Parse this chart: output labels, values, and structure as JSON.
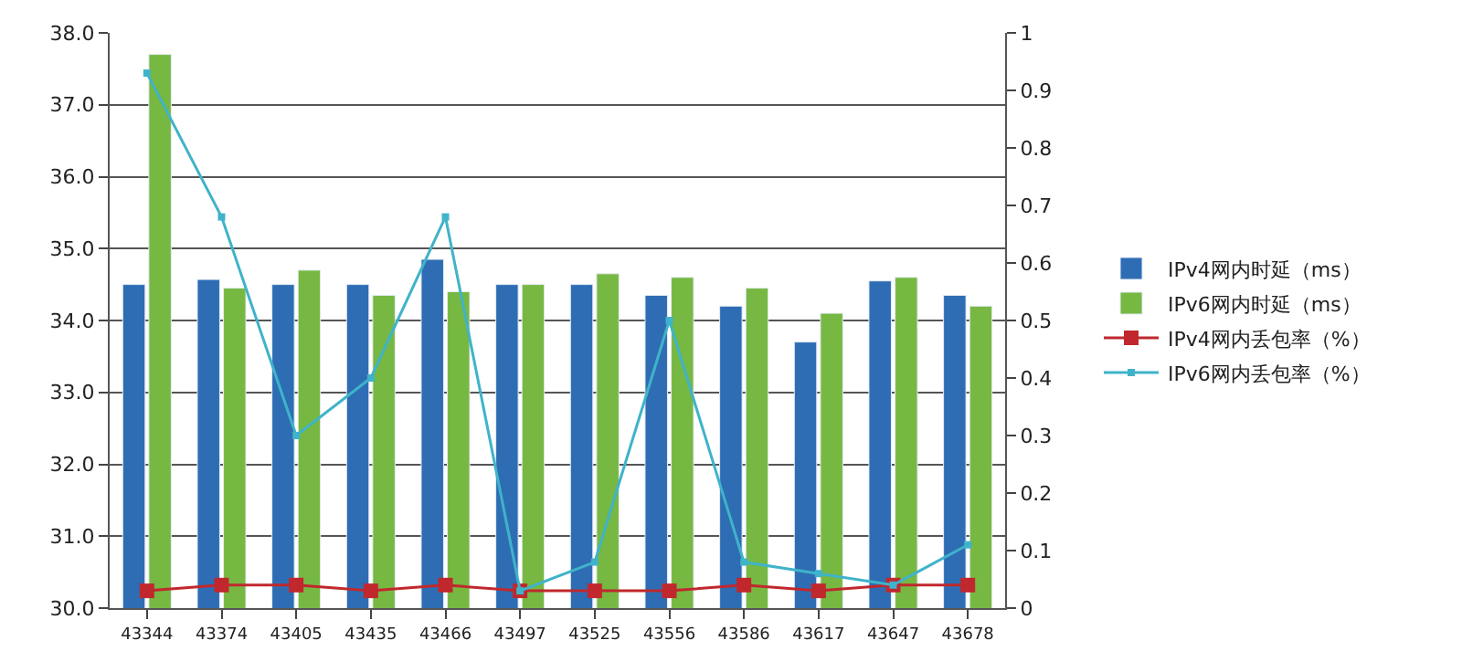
{
  "chart_data": {
    "type": "bar",
    "categories": [
      "43344",
      "43374",
      "43405",
      "43435",
      "43466",
      "43497",
      "43525",
      "43556",
      "43586",
      "43617",
      "43647",
      "43678"
    ],
    "series": [
      {
        "name": "IPv4网内时延（ms）",
        "color": "#2e6db4",
        "values": [
          34.5,
          34.57,
          34.5,
          34.5,
          34.85,
          34.5,
          34.5,
          34.35,
          34.2,
          33.7,
          34.55,
          34.35
        ]
      },
      {
        "name": "IPv6网内时延（ms）",
        "color": "#77b843",
        "values": [
          37.7,
          34.45,
          34.7,
          34.35,
          34.4,
          34.5,
          34.65,
          34.6,
          34.45,
          34.1,
          34.6,
          34.2
        ]
      },
      {
        "name": "IPv4网内丢包率（%）",
        "type": "line",
        "axis": "y2",
        "color": "#c0282d",
        "values": [
          0.03,
          0.04,
          0.04,
          0.03,
          0.04,
          0.03,
          0.03,
          0.03,
          0.04,
          0.03,
          0.04,
          0.04
        ]
      },
      {
        "name": "IPv6网内丢包率（%）",
        "type": "line",
        "axis": "y2",
        "color": "#3fb3c9",
        "values": [
          0.93,
          0.68,
          0.3,
          0.4,
          0.68,
          0.03,
          0.08,
          0.5,
          0.08,
          0.06,
          0.04,
          0.11
        ]
      }
    ],
    "ylim": [
      30,
      38
    ],
    "yticks": [
      {
        "value": 30,
        "label": "30.0"
      },
      {
        "value": 31,
        "label": "31.0"
      },
      {
        "value": 32,
        "label": "32.0"
      },
      {
        "value": 33,
        "label": "33.0"
      },
      {
        "value": 34,
        "label": "34.0"
      },
      {
        "value": 35,
        "label": "35.0"
      },
      {
        "value": 36,
        "label": "36.0"
      },
      {
        "value": 37,
        "label": "37.0"
      },
      {
        "value": 38,
        "label": "38.0"
      }
    ],
    "y2lim": [
      0,
      1
    ],
    "y2ticks": [
      0,
      0.1,
      0.2,
      0.3,
      0.4,
      0.5,
      0.6,
      0.7,
      0.8,
      0.9,
      1
    ],
    "grid": "y",
    "legend": "right",
    "marker": "square",
    "line_style": "solid"
  }
}
